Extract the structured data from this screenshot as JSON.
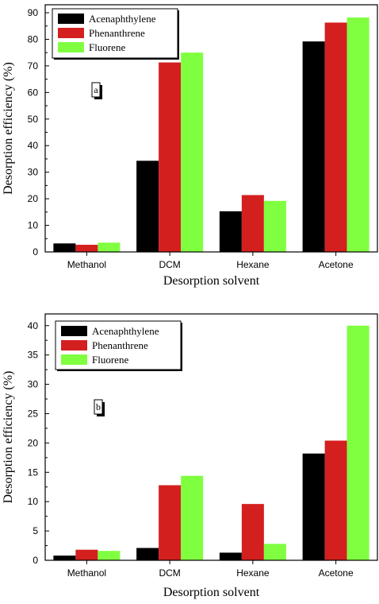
{
  "chart_data": [
    {
      "type": "bar",
      "panel_label": "a",
      "categories": [
        "Methanol",
        "DCM",
        "Hexane",
        "Acetone"
      ],
      "series": [
        {
          "name": "Acenaphthylene",
          "color": "#000000",
          "values": [
            3.2,
            34.3,
            15.3,
            79.2
          ]
        },
        {
          "name": "Phenanthrene",
          "color": "#d41f1f",
          "values": [
            2.7,
            71.3,
            21.4,
            86.3
          ]
        },
        {
          "name": "Fluorene",
          "color": "#80ff40",
          "values": [
            3.5,
            75.0,
            19.2,
            88.2
          ]
        }
      ],
      "xlabel": "Desorption solvent",
      "ylabel": "Desorption efficiency (%)",
      "ylim": [
        0,
        93
      ],
      "yticks": [
        0,
        10,
        20,
        30,
        40,
        50,
        60,
        70,
        80,
        90
      ],
      "legend": "top-left",
      "grid": false
    },
    {
      "type": "bar",
      "panel_label": "b",
      "categories": [
        "Methanol",
        "DCM",
        "Hexane",
        "Acetone"
      ],
      "series": [
        {
          "name": "Acenaphthylene",
          "color": "#000000",
          "values": [
            0.8,
            2.1,
            1.3,
            18.2
          ]
        },
        {
          "name": "Phenanthrene",
          "color": "#d41f1f",
          "values": [
            1.8,
            12.8,
            9.6,
            20.4
          ]
        },
        {
          "name": "Fluorene",
          "color": "#80ff40",
          "values": [
            1.6,
            14.4,
            2.8,
            40.0
          ]
        }
      ],
      "xlabel": "Desorption solvent",
      "ylabel": "Desorption efficiency (%)",
      "ylim": [
        0,
        42
      ],
      "yticks": [
        0,
        5,
        10,
        15,
        20,
        25,
        30,
        35,
        40
      ],
      "legend": "top-left",
      "grid": false
    }
  ]
}
